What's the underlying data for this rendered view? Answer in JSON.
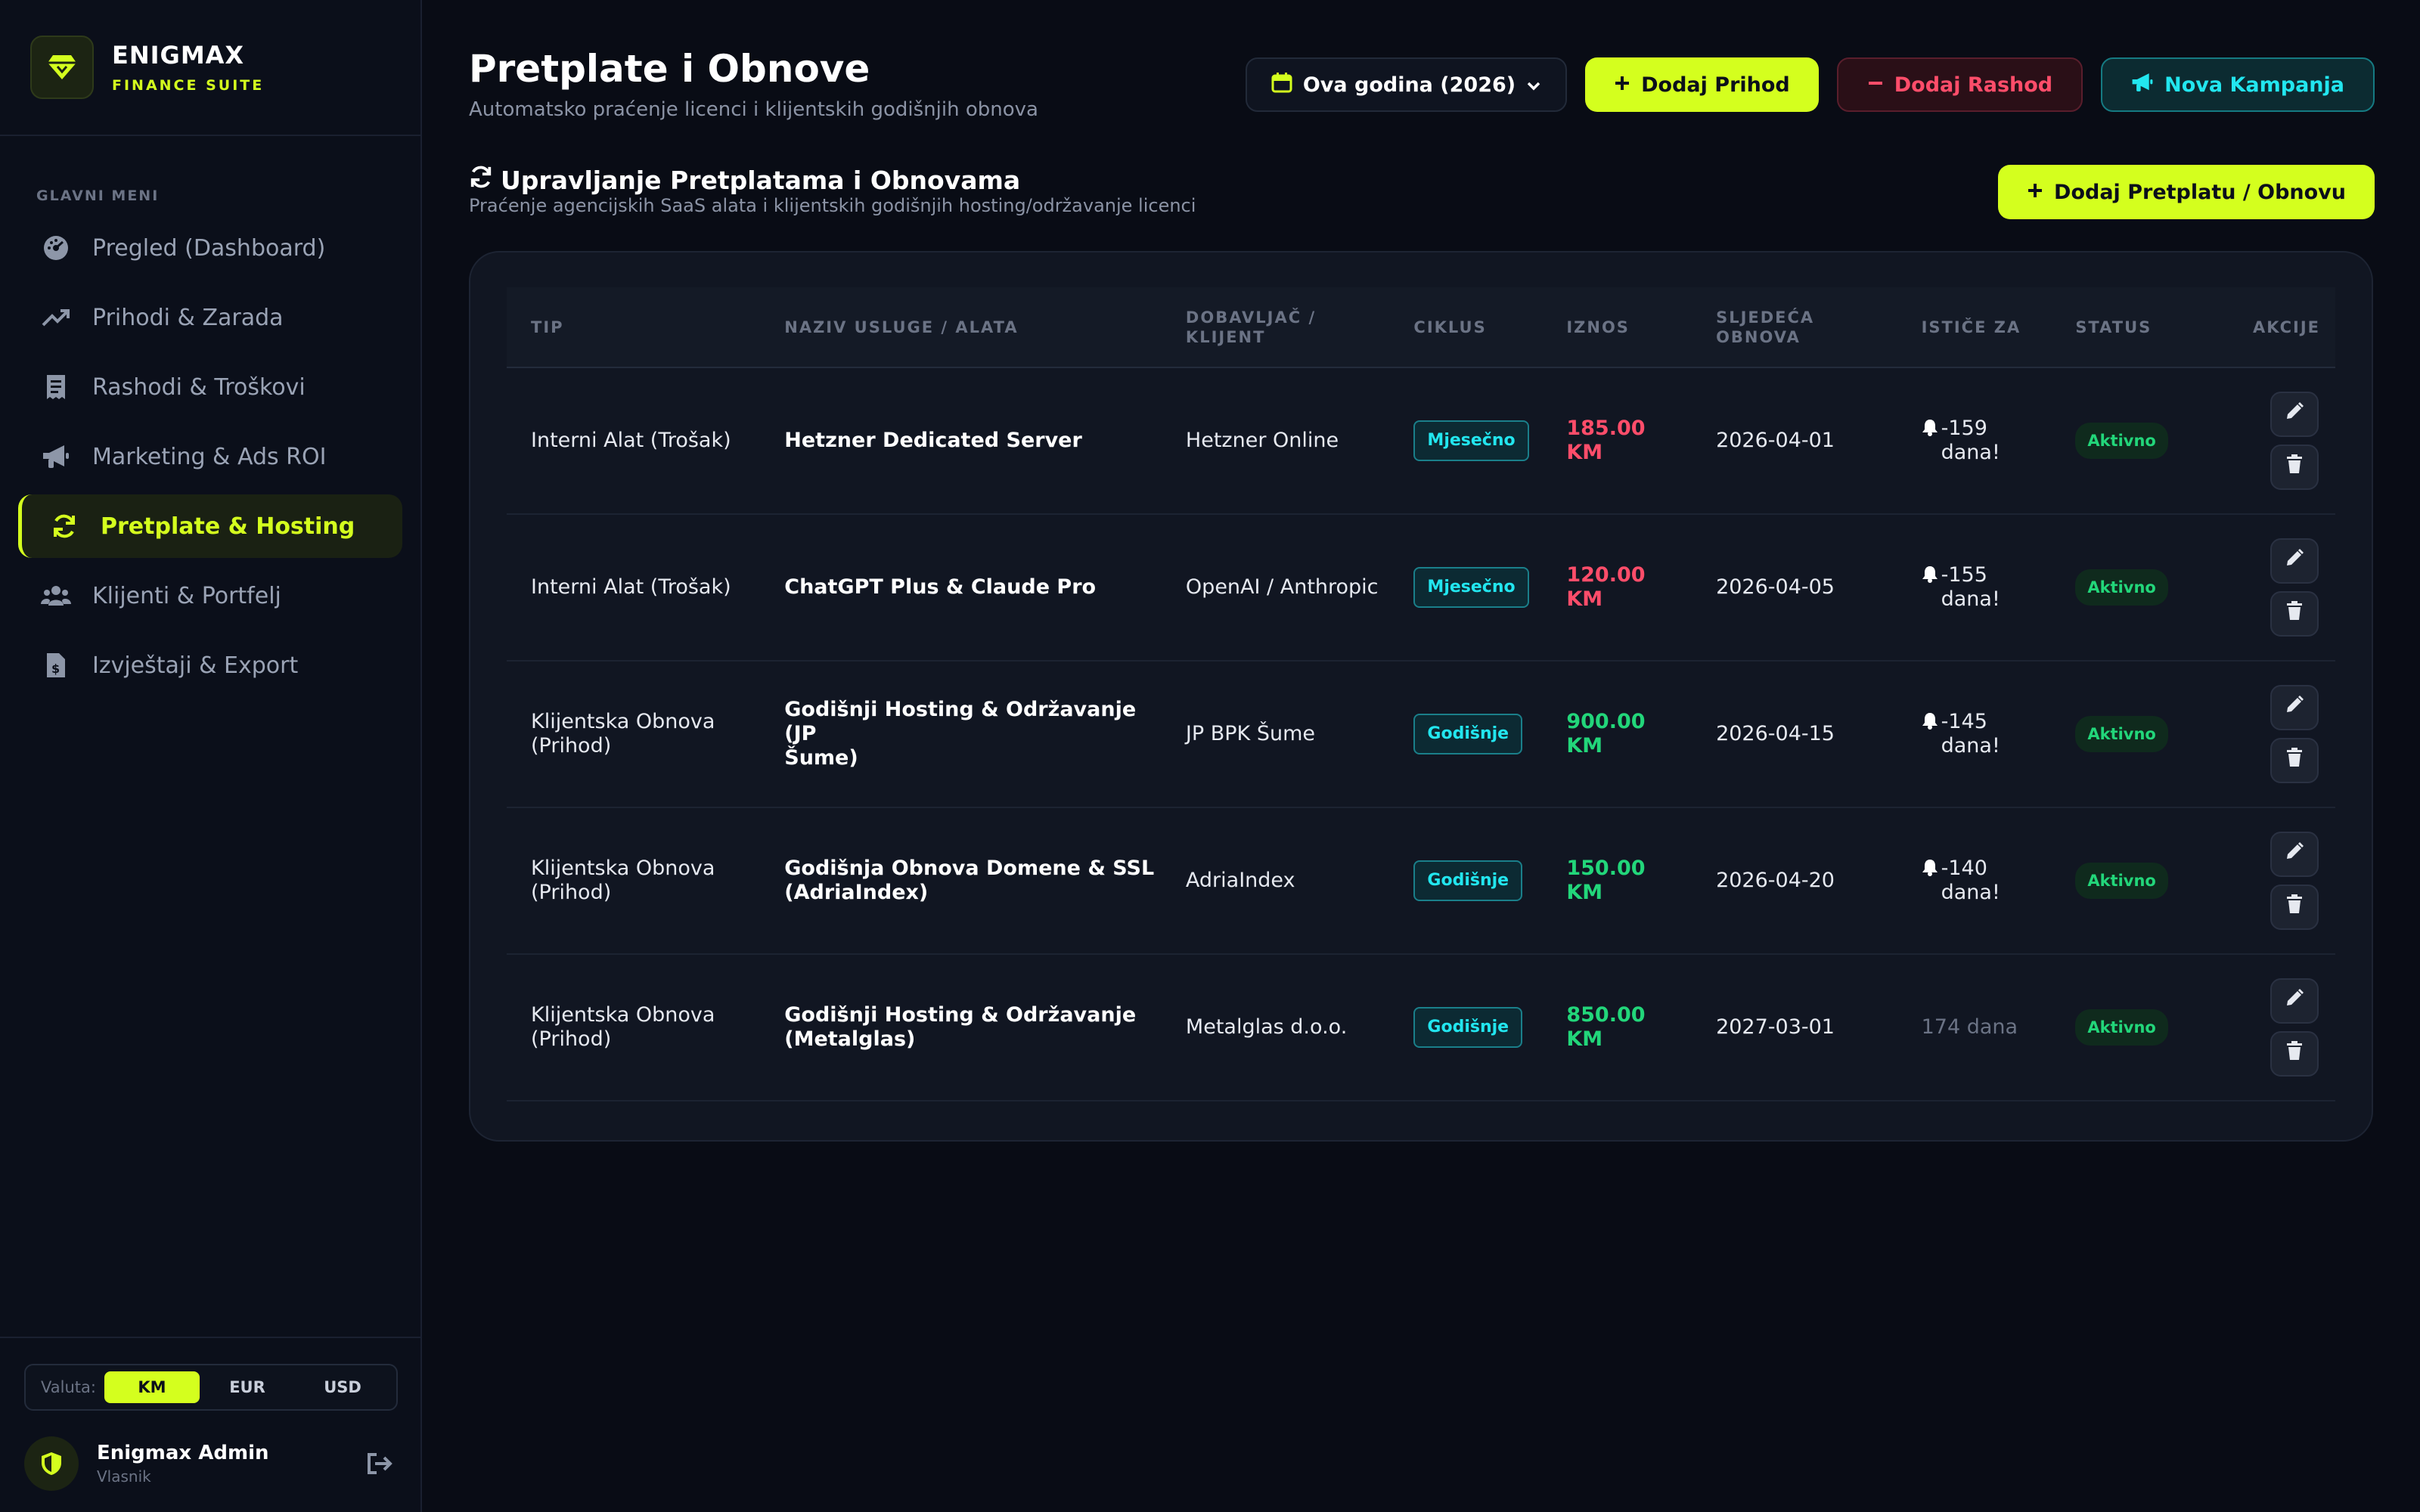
{
  "brand": {
    "name": "ENIGMAX",
    "subtitle": "FINANCE SUITE"
  },
  "sidebar": {
    "menu_title": "GLAVNI MENI",
    "items": [
      {
        "label": "Pregled (Dashboard)",
        "icon": "dashboard-icon"
      },
      {
        "label": "Prihodi & Zarada",
        "icon": "trend-up-icon"
      },
      {
        "label": "Rashodi & Troškovi",
        "icon": "receipt-icon"
      },
      {
        "label": "Marketing & Ads ROI",
        "icon": "megaphone-icon"
      },
      {
        "label": "Pretplate & Hosting",
        "icon": "refresh-icon",
        "active": true
      },
      {
        "label": "Klijenti & Portfelj",
        "icon": "users-icon"
      },
      {
        "label": "Izvještaji & Export",
        "icon": "file-invoice-icon"
      }
    ],
    "currency": {
      "label": "Valuta:",
      "options": [
        "KM",
        "EUR",
        "USD"
      ],
      "selected": "KM"
    },
    "user": {
      "name": "Enigmax Admin",
      "role": "Vlasnik"
    }
  },
  "header": {
    "title": "Pretplate i Obnove",
    "subtitle": "Automatsko praćenje licenci i klijentskih godišnjih obnova",
    "year_filter": "Ova godina (2026)",
    "add_income": "Dodaj Prihod",
    "add_expense": "Dodaj Rashod",
    "new_campaign": "Nova Kampanja"
  },
  "section": {
    "title": "Upravljanje Pretplatama i Obnovama",
    "subtitle": "Praćenje agencijskih SaaS alata i klijentskih godišnjih hosting/održavanje licenci",
    "add_button": "Dodaj Pretplatu / Obnovu"
  },
  "table": {
    "headers": {
      "type": "TIP",
      "service": "NAZIV USLUGE / ALATA",
      "provider_1": "DOBAVLJAČ /",
      "provider_2": "KLIJENT",
      "cycle": "CIKLUS",
      "amount": "IZNOS",
      "next_1": "SLJEDEĆA",
      "next_2": "OBNOVA",
      "expires": "ISTIČE ZA",
      "status": "STATUS",
      "actions": "AKCIJE"
    },
    "rows": [
      {
        "type_1": "Interni Alat (Trošak)",
        "type_2": "",
        "service_1": "Hetzner Dedicated Server",
        "service_2": "",
        "provider": "Hetzner Online",
        "cycle": "Mjesečno",
        "amount_1": "185.00",
        "amount_2": "KM",
        "amount_sign": "neg",
        "next": "2026-04-01",
        "expires_1": "-159",
        "expires_2": "dana!",
        "alert": true,
        "status": "Aktivno"
      },
      {
        "type_1": "Interni Alat (Trošak)",
        "type_2": "",
        "service_1": "ChatGPT Plus & Claude Pro",
        "service_2": "",
        "provider": "OpenAI / Anthropic",
        "cycle": "Mjesečno",
        "amount_1": "120.00",
        "amount_2": "KM",
        "amount_sign": "neg",
        "next": "2026-04-05",
        "expires_1": "-155",
        "expires_2": "dana!",
        "alert": true,
        "status": "Aktivno"
      },
      {
        "type_1": "Klijentska Obnova",
        "type_2": "(Prihod)",
        "service_1": "Godišnji Hosting & Održavanje (JP",
        "service_2": "Šume)",
        "provider": "JP BPK Šume",
        "cycle": "Godišnje",
        "amount_1": "900.00",
        "amount_2": "KM",
        "amount_sign": "pos",
        "next": "2026-04-15",
        "expires_1": "-145",
        "expires_2": "dana!",
        "alert": true,
        "status": "Aktivno"
      },
      {
        "type_1": "Klijentska Obnova",
        "type_2": "(Prihod)",
        "service_1": "Godišnja Obnova Domene & SSL",
        "service_2": "(AdriaIndex)",
        "provider": "AdriaIndex",
        "cycle": "Godišnje",
        "amount_1": "150.00",
        "amount_2": "KM",
        "amount_sign": "pos",
        "next": "2026-04-20",
        "expires_1": "-140",
        "expires_2": "dana!",
        "alert": true,
        "status": "Aktivno"
      },
      {
        "type_1": "Klijentska Obnova",
        "type_2": "(Prihod)",
        "service_1": "Godišnji Hosting & Održavanje",
        "service_2": "(Metalglas)",
        "provider": "Metalglas d.o.o.",
        "cycle": "Godišnje",
        "amount_1": "850.00",
        "amount_2": "KM",
        "amount_sign": "pos",
        "next": "2027-03-01",
        "expires_1": "174 dana",
        "expires_2": "",
        "alert": false,
        "status": "Aktivno"
      }
    ]
  },
  "colors": {
    "accent": "#d4ff1e",
    "danger": "#ff4d6a",
    "success": "#22d67a",
    "teal": "#22e6ef",
    "background": "#090c15"
  }
}
